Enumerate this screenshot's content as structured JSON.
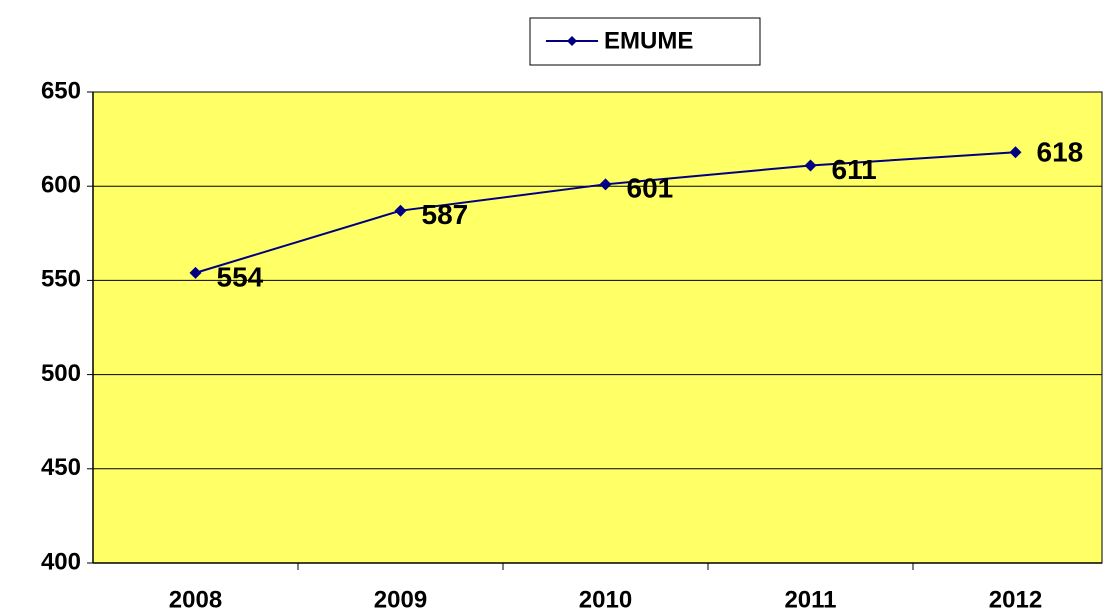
{
  "chart_data": {
    "type": "line",
    "categories": [
      "2008",
      "2009",
      "2010",
      "2011",
      "2012"
    ],
    "series": [
      {
        "name": "EMUME",
        "color": "#000080",
        "values": [
          554,
          587,
          601,
          611,
          618
        ]
      }
    ],
    "ylim": [
      400,
      650
    ],
    "yticks": [
      400,
      450,
      500,
      550,
      600,
      650
    ],
    "grid": true,
    "legend": "top",
    "plot_background": "#ffff66"
  }
}
